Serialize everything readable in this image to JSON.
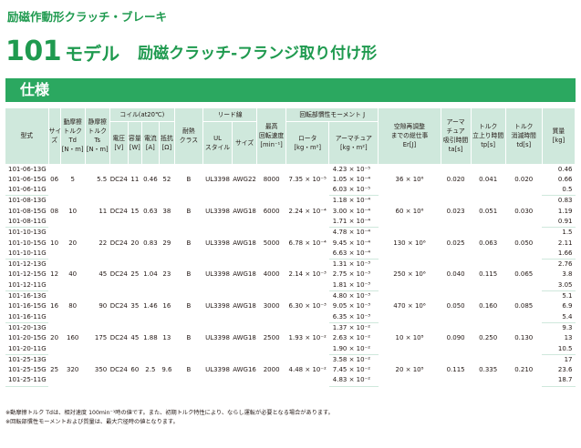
{
  "header": {
    "category": "励磁作動形クラッチ・ブレーキ",
    "model_number": "101",
    "model_suffix": "モデル",
    "model_desc": "励磁クラッチ-フランジ取り付け形"
  },
  "section": {
    "title": "仕様"
  },
  "table": {
    "headers": {
      "model": "型式",
      "size": [
        "サイ",
        "ズ"
      ],
      "dyn_torque": [
        "動摩擦",
        "トルク",
        "Td",
        "[N・m]"
      ],
      "static_torque": [
        "静摩擦",
        "トルク",
        "Ts",
        "[N・m]"
      ],
      "coil_group": "コイル(at20℃)",
      "voltage": [
        "電圧",
        "[V]"
      ],
      "capacity": [
        "容量",
        "[W]"
      ],
      "current": [
        "電流",
        "[A]"
      ],
      "resistance": [
        "抵抗",
        "[Ω]"
      ],
      "heat_class": [
        "耐熱",
        "クラス"
      ],
      "lead_group": "リード線",
      "ul_style": [
        "UL",
        "スタイル"
      ],
      "lead_size": "サイズ",
      "max_speed": [
        "最高",
        "回転速度",
        "[min⁻¹]"
      ],
      "inertia_group": "回転部慣性モーメント J",
      "rotor": [
        "ロータ",
        "[kg・m²]"
      ],
      "armature": [
        "アーマチュア",
        "[kg・m²]"
      ],
      "air_gap_work": [
        "空隙再調整",
        "までの総仕事",
        "Er[J]"
      ],
      "armature_time": [
        "アーマ",
        "チュア",
        "吸引時間",
        "ta[s]"
      ],
      "rise_time": [
        "トルク",
        "立上り時間",
        "tp[s]"
      ],
      "decay_time": [
        "トルク",
        "消滅時間",
        "td[s]"
      ],
      "mass": [
        "質量",
        "[kg]"
      ]
    },
    "groups": [
      {
        "models": [
          "101-06-13G",
          "101-06-15G",
          "101-06-11G"
        ],
        "size": "06",
        "dyn_torque": "5",
        "static_torque": "5.5",
        "voltage": "DC24",
        "capacity": "11",
        "current": "0.46",
        "resistance": "52",
        "heat_class": "B",
        "ul_style": "UL3398",
        "lead_size": "AWG22",
        "max_speed": "8000",
        "rotor": "7.35 × 10⁻⁵",
        "armature": [
          "4.23 × 10⁻⁵",
          "1.05 × 10⁻⁴",
          "6.03 × 10⁻⁵"
        ],
        "work": "36 × 10⁶",
        "armature_time": "0.020",
        "rise_time": "0.041",
        "decay_time": "0.020",
        "mass": [
          "0.46",
          "0.66",
          "0.5"
        ]
      },
      {
        "models": [
          "101-08-13G",
          "101-08-15G",
          "101-08-11G"
        ],
        "size": "08",
        "dyn_torque": "10",
        "static_torque": "11",
        "voltage": "DC24",
        "capacity": "15",
        "current": "0.63",
        "resistance": "38",
        "heat_class": "B",
        "ul_style": "UL3398",
        "lead_size": "AWG18",
        "max_speed": "6000",
        "rotor": "2.24 × 10⁻⁴",
        "armature": [
          "1.18 × 10⁻⁴",
          "3.00 × 10⁻⁴",
          "1.71 × 10⁻⁴"
        ],
        "work": "60 × 10⁶",
        "armature_time": "0.023",
        "rise_time": "0.051",
        "decay_time": "0.030",
        "mass": [
          "0.83",
          "1.19",
          "0.91"
        ]
      },
      {
        "models": [
          "101-10-13G",
          "101-10-15G",
          "101-10-11G"
        ],
        "size": "10",
        "dyn_torque": "20",
        "static_torque": "22",
        "voltage": "DC24",
        "capacity": "20",
        "current": "0.83",
        "resistance": "29",
        "heat_class": "B",
        "ul_style": "UL3398",
        "lead_size": "AWG18",
        "max_speed": "5000",
        "rotor": "6.78 × 10⁻⁴",
        "armature": [
          "4.78 × 10⁻⁴",
          "9.45 × 10⁻⁴",
          "6.63 × 10⁻⁴"
        ],
        "work": "130 × 10⁶",
        "armature_time": "0.025",
        "rise_time": "0.063",
        "decay_time": "0.050",
        "mass": [
          "1.5",
          "2.11",
          "1.66"
        ]
      },
      {
        "models": [
          "101-12-13G",
          "101-12-15G",
          "101-12-11G"
        ],
        "size": "12",
        "dyn_torque": "40",
        "static_torque": "45",
        "voltage": "DC24",
        "capacity": "25",
        "current": "1.04",
        "resistance": "23",
        "heat_class": "B",
        "ul_style": "UL3398",
        "lead_size": "AWG18",
        "max_speed": "4000",
        "rotor": "2.14 × 10⁻³",
        "armature": [
          "1.31 × 10⁻³",
          "2.75 × 10⁻³",
          "1.81 × 10⁻³"
        ],
        "work": "250 × 10⁶",
        "armature_time": "0.040",
        "rise_time": "0.115",
        "decay_time": "0.065",
        "mass": [
          "2.76",
          "3.8",
          "3.05"
        ]
      },
      {
        "models": [
          "101-16-13G",
          "101-16-15G",
          "101-16-11G"
        ],
        "size": "16",
        "dyn_torque": "80",
        "static_torque": "90",
        "voltage": "DC24",
        "capacity": "35",
        "current": "1.46",
        "resistance": "16",
        "heat_class": "B",
        "ul_style": "UL3398",
        "lead_size": "AWG18",
        "max_speed": "3000",
        "rotor": "6.30 × 10⁻³",
        "armature": [
          "4.80 × 10⁻³",
          "9.05 × 10⁻³",
          "6.35 × 10⁻³"
        ],
        "work": "470 × 10⁶",
        "armature_time": "0.050",
        "rise_time": "0.160",
        "decay_time": "0.085",
        "mass": [
          "5.1",
          "6.9",
          "5.4"
        ]
      },
      {
        "models": [
          "101-20-13G",
          "101-20-15G",
          "101-20-11G"
        ],
        "size": "20",
        "dyn_torque": "160",
        "static_torque": "175",
        "voltage": "DC24",
        "capacity": "45",
        "current": "1.88",
        "resistance": "13",
        "heat_class": "B",
        "ul_style": "UL3398",
        "lead_size": "AWG18",
        "max_speed": "2500",
        "rotor": "1.93 × 10⁻²",
        "armature": [
          "1.37 × 10⁻²",
          "2.63 × 10⁻²",
          "1.90 × 10⁻²"
        ],
        "work": "10 × 10⁸",
        "armature_time": "0.090",
        "rise_time": "0.250",
        "decay_time": "0.130",
        "mass": [
          "9.3",
          "13",
          "10.5"
        ]
      },
      {
        "models": [
          "101-25-13G",
          "101-25-15G",
          "101-25-11G"
        ],
        "size": "25",
        "dyn_torque": "320",
        "static_torque": "350",
        "voltage": "DC24",
        "capacity": "60",
        "current": "2.5",
        "resistance": "9.6",
        "heat_class": "B",
        "ul_style": "UL3398",
        "lead_size": "AWG16",
        "max_speed": "2000",
        "rotor": "4.48 × 10⁻²",
        "armature": [
          "3.58 × 10⁻²",
          "7.45 × 10⁻²",
          "4.83 × 10⁻²"
        ],
        "work": "20 × 10⁸",
        "armature_time": "0.115",
        "rise_time": "0.335",
        "decay_time": "0.210",
        "mass": [
          "17",
          "23.6",
          "18.7"
        ]
      }
    ]
  },
  "footnotes": [
    "※動摩擦トルク Tdは、相対速度 100min⁻¹時の値です。また、初期トルク特性により、ならし運転が必要となる場合があります。",
    "※回転部慣性モーメントおよび質量は、最大穴径時の値となります。"
  ]
}
